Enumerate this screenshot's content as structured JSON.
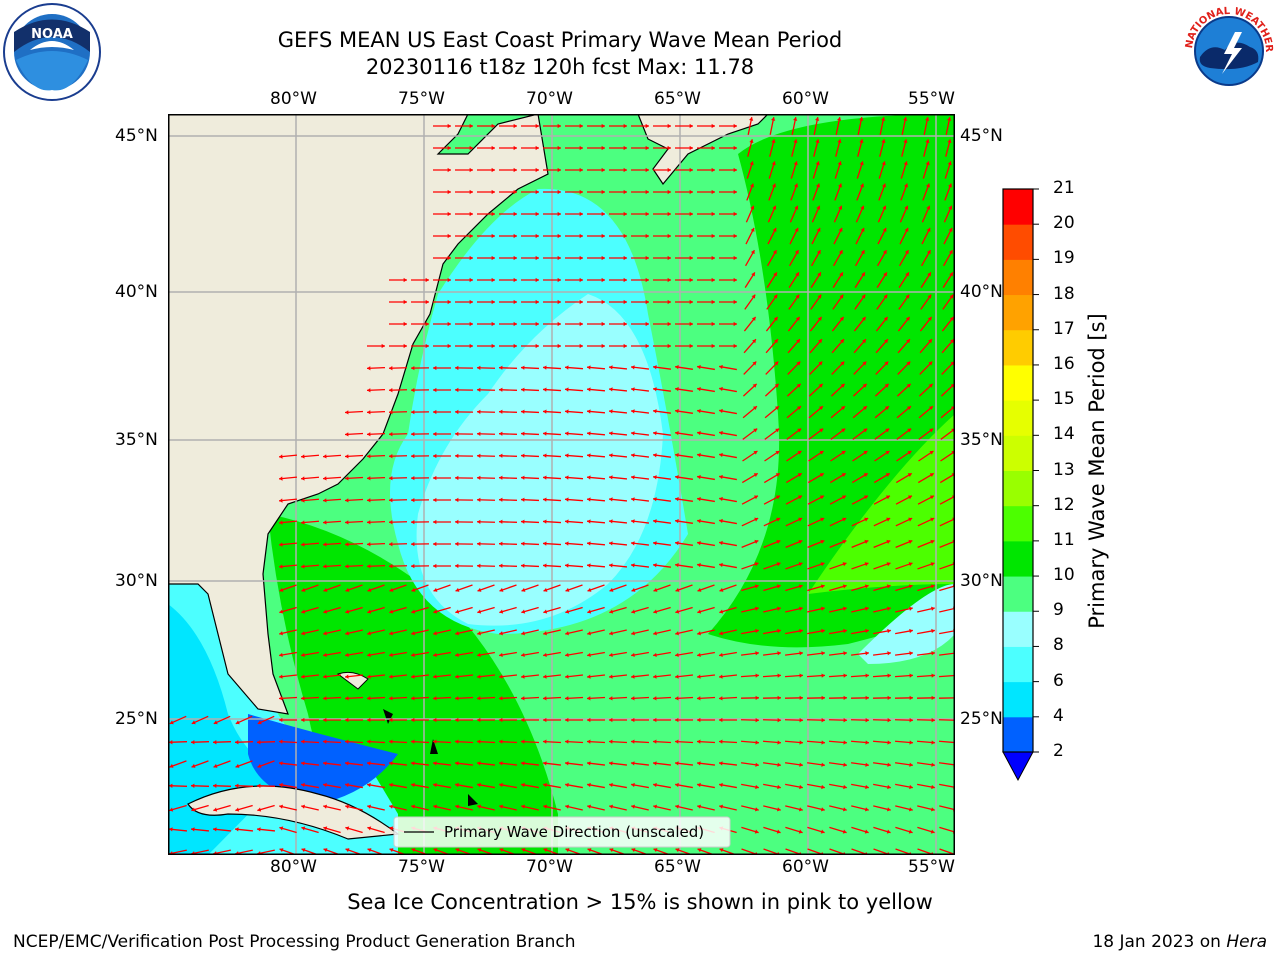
{
  "header": {
    "title_line1": "GEFS MEAN US East Coast Primary Wave Mean Period",
    "title_line2": "20230116 t18z 120h fcst   Max: 11.78"
  },
  "logos": {
    "left": {
      "icon": "noaa-logo",
      "text": "NOAA"
    },
    "right": {
      "icon": "national-weather-service-logo",
      "text": "NATIONAL WEATHER SERVICE"
    }
  },
  "map": {
    "lon_labels": [
      "80°W",
      "75°W",
      "70°W",
      "65°W",
      "60°W",
      "55°W"
    ],
    "lat_labels": [
      "45°N",
      "40°N",
      "35°N",
      "30°N",
      "25°N"
    ],
    "legend_label": "Primary Wave Direction (unscaled)",
    "arrow_color": "#ff0000",
    "land_color": "#efecdc",
    "grid_color": "#b0b0b0"
  },
  "colorbar": {
    "label": "Primary Wave Mean Period [s]",
    "ticks": [
      "2",
      "4",
      "6",
      "8",
      "9",
      "10",
      "11",
      "12",
      "13",
      "14",
      "15",
      "16",
      "17",
      "18",
      "19",
      "20",
      "21"
    ],
    "colors": [
      "#0061ff",
      "#00e6ff",
      "#4cffff",
      "#99ffff",
      "#4cff80",
      "#00e600",
      "#4cff00",
      "#99ff00",
      "#ccff00",
      "#e6ff00",
      "#ffff00",
      "#ffcc00",
      "#ffa200",
      "#ff8000",
      "#ff4c00",
      "#ff0000"
    ],
    "extend_color": "#0000ff"
  },
  "notes": {
    "sea_ice": "Sea Ice Concentration > 15% is shown in pink to yellow"
  },
  "footer": {
    "left": "NCEP/EMC/Verification Post Processing Product Generation Branch",
    "date": "18 Jan 2023 on ",
    "machine": "Hera"
  }
}
